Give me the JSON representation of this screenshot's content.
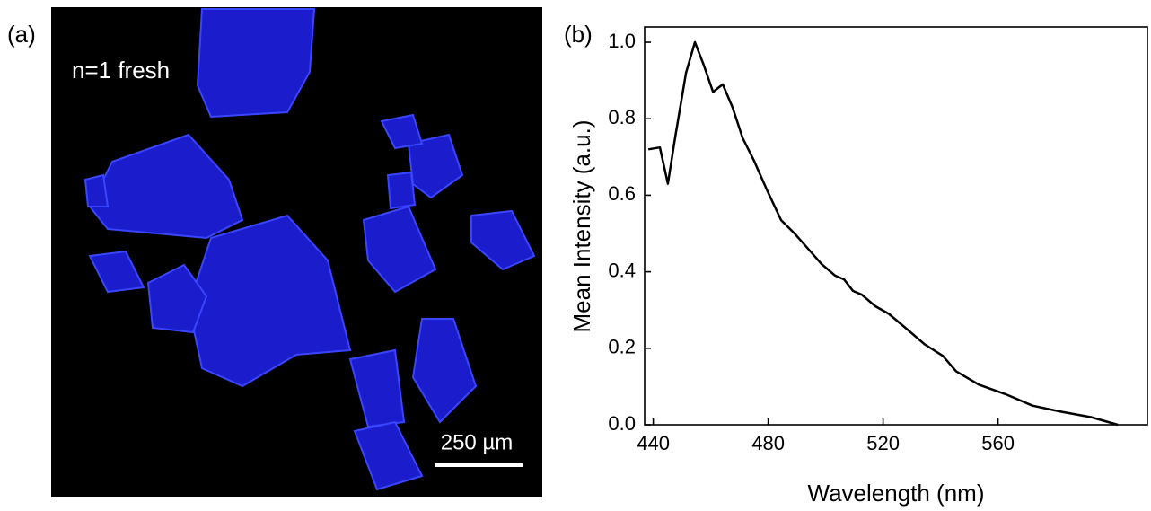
{
  "panel_a": {
    "label": "(a)",
    "annotation": "n=1 fresh",
    "scale_bar": "250 µm"
  },
  "chart_data": {
    "type": "line",
    "panel_label": "(b)",
    "xlabel": "Wavelength (nm)",
    "ylabel": "Mean Intensity (a.u.)",
    "x": [
      438.3,
      442.3,
      445.1,
      447.6,
      451.4,
      454.5,
      457.6,
      460.8,
      464.2,
      467.6,
      471.1,
      475.1,
      479.8,
      484.5,
      489.2,
      493.9,
      498.6,
      503.3,
      506.4,
      509.5,
      512.6,
      517.3,
      522.0,
      528.3,
      534.5,
      540.8,
      545.4,
      553.3,
      562.6,
      572.0,
      581.4,
      592.3,
      601.7
    ],
    "values": [
      0.72,
      0.725,
      0.63,
      0.75,
      0.92,
      1.0,
      0.94,
      0.87,
      0.89,
      0.83,
      0.75,
      0.69,
      0.61,
      0.535,
      0.5,
      0.46,
      0.42,
      0.39,
      0.38,
      0.35,
      0.34,
      0.31,
      0.29,
      0.25,
      0.21,
      0.18,
      0.14,
      0.105,
      0.08,
      0.05,
      0.035,
      0.02,
      0.0
    ],
    "color": "#000000",
    "xlim": [
      437,
      612
    ],
    "xticks": [
      440,
      480,
      520,
      560
    ],
    "ylim": [
      0,
      1.04
    ],
    "yticks": [
      {
        "value": 0,
        "label": "0.0"
      },
      0.2,
      0.4,
      0.6,
      0.8,
      {
        "value": 1,
        "label": "1.0"
      }
    ]
  }
}
